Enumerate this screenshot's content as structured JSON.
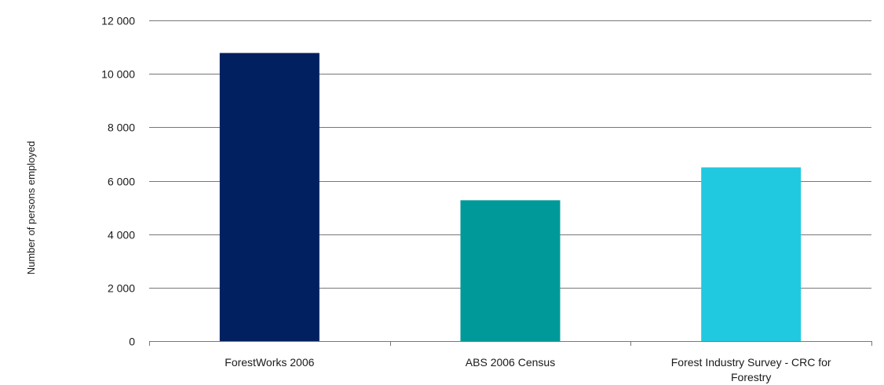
{
  "chart_data": {
    "type": "bar",
    "title": "",
    "xlabel": "",
    "ylabel": "Number of persons employed",
    "categories": [
      "ForestWorks 2006",
      "ABS 2006 Census",
      "Forest Industry Survey - CRC for Forestry"
    ],
    "values": [
      10780,
      5270,
      6500
    ],
    "colors": [
      "#002060",
      "#009999",
      "#21C9E0"
    ],
    "ylim": [
      0,
      12000
    ],
    "yticks": [
      0,
      2000,
      4000,
      6000,
      8000,
      10000,
      12000
    ],
    "ytick_labels": [
      "0",
      "2 000",
      "4 000",
      "6 000",
      "8 000",
      "10 000",
      "12 000"
    ],
    "grid": true,
    "legend": "none"
  }
}
